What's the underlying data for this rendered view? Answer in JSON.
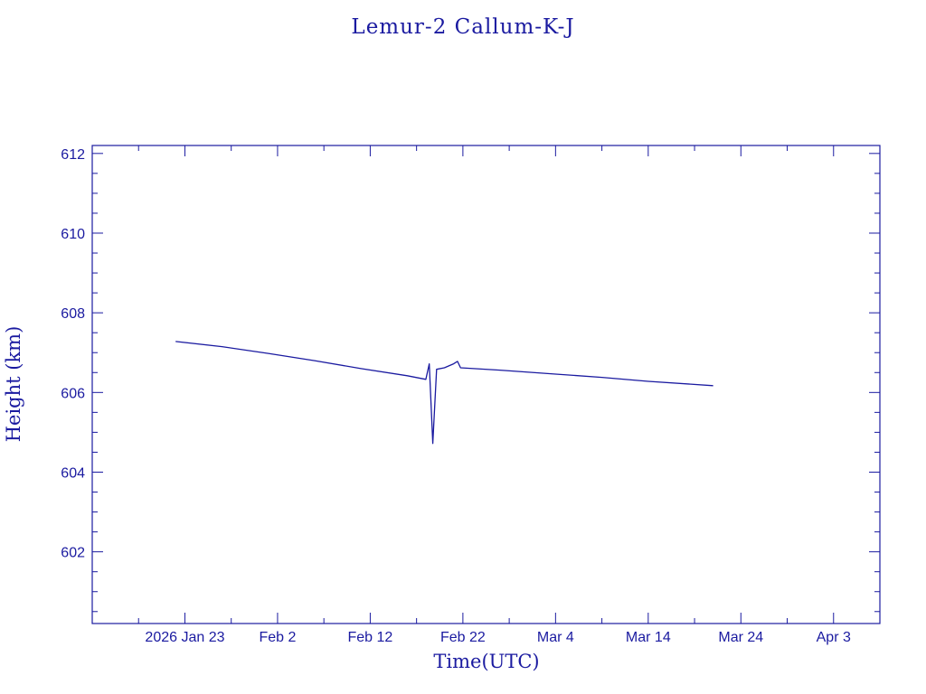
{
  "chart_data": {
    "type": "line",
    "title": "Lemur-2 Callum-K-J",
    "xlabel": "Time(UTC)",
    "ylabel": "Height (km)",
    "x_axis": "date",
    "xlim": [
      "2026-01-13",
      "2026-04-08"
    ],
    "ylim": [
      600.2,
      612.2
    ],
    "x_ticks": [
      {
        "date": "2026-01-23",
        "label": "2026 Jan 23"
      },
      {
        "date": "2026-02-02",
        "label": "Feb  2"
      },
      {
        "date": "2026-02-12",
        "label": "Feb 12"
      },
      {
        "date": "2026-02-22",
        "label": "Feb 22"
      },
      {
        "date": "2026-03-04",
        "label": "Mar  4"
      },
      {
        "date": "2026-03-14",
        "label": "Mar 14"
      },
      {
        "date": "2026-03-24",
        "label": "Mar 24"
      },
      {
        "date": "2026-04-03",
        "label": "Apr  3"
      }
    ],
    "y_ticks": [
      602,
      604,
      606,
      608,
      610,
      612
    ],
    "series": [
      {
        "color": "#1a1aa0",
        "points": [
          [
            "2026-01-22",
            607.28
          ],
          [
            "2026-01-27",
            607.15
          ],
          [
            "2026-02-01",
            606.98
          ],
          [
            "2026-02-06",
            606.8
          ],
          [
            "2026-02-11",
            606.6
          ],
          [
            "2026-02-16",
            606.42
          ],
          [
            "2026-02-18",
            606.33
          ],
          [
            "2026-02-18T09:00",
            606.72
          ],
          [
            "2026-02-18T18:00",
            604.72
          ],
          [
            "2026-02-19T04:00",
            606.58
          ],
          [
            "2026-02-20",
            606.62
          ],
          [
            "2026-02-21",
            606.72
          ],
          [
            "2026-02-21T10:00",
            606.78
          ],
          [
            "2026-02-21T18:00",
            606.62
          ],
          [
            "2026-02-26",
            606.56
          ],
          [
            "2026-03-04",
            606.46
          ],
          [
            "2026-03-09",
            606.38
          ],
          [
            "2026-03-14",
            606.28
          ],
          [
            "2026-03-21",
            606.17
          ]
        ]
      }
    ]
  }
}
